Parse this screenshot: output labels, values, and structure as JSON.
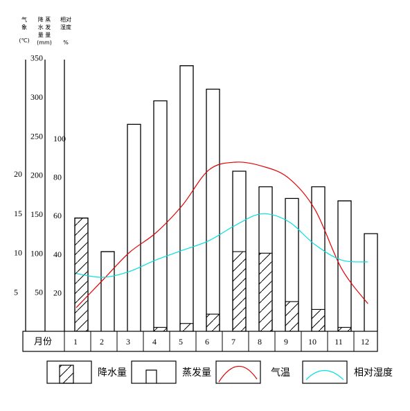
{
  "axis_headers": {
    "temp": [
      "气",
      "象",
      "(℃)"
    ],
    "water": [
      "降 蒸",
      "水 发",
      "量 量",
      "(mm)"
    ],
    "humidity": [
      "相对",
      "湿度",
      "%"
    ]
  },
  "month_axis_label": "月份",
  "legend": {
    "precip": "降水量",
    "evap": "蒸发量",
    "temp": "气温",
    "humidity": "相对湿度"
  },
  "colors": {
    "temp": "#e00000",
    "humidity": "#00e0e0",
    "bars": "#000000"
  },
  "chart_data": {
    "type": "bar",
    "categories": [
      "1",
      "2",
      "3",
      "4",
      "5",
      "6",
      "7",
      "8",
      "9",
      "10",
      "11",
      "12"
    ],
    "series": [
      {
        "name": "蒸发量",
        "values": [
          145,
          102,
          265,
          295,
          340,
          310,
          205,
          185,
          170,
          185,
          167,
          125
        ]
      },
      {
        "name": "降水量",
        "values": [
          145,
          0,
          0,
          5,
          10,
          22,
          102,
          100,
          38,
          28,
          5,
          0
        ]
      },
      {
        "name": "气温",
        "values": [
          3,
          6.5,
          10,
          12.5,
          16,
          20.5,
          21.5,
          21,
          19.5,
          15.5,
          8,
          3.5
        ]
      },
      {
        "name": "相对湿度",
        "values": [
          30,
          28,
          31,
          37,
          42,
          47,
          55,
          61,
          57,
          45,
          37,
          36
        ]
      }
    ],
    "axes": {
      "temp": {
        "ticks": [
          5,
          10,
          15,
          20
        ],
        "unit": "℃"
      },
      "water": {
        "ticks": [
          50,
          100,
          150,
          200,
          250,
          300,
          350
        ],
        "unit": "mm",
        "range": [
          0,
          350
        ]
      },
      "humidity": {
        "ticks": [
          20,
          40,
          60,
          80,
          100
        ],
        "unit": "%"
      }
    }
  }
}
